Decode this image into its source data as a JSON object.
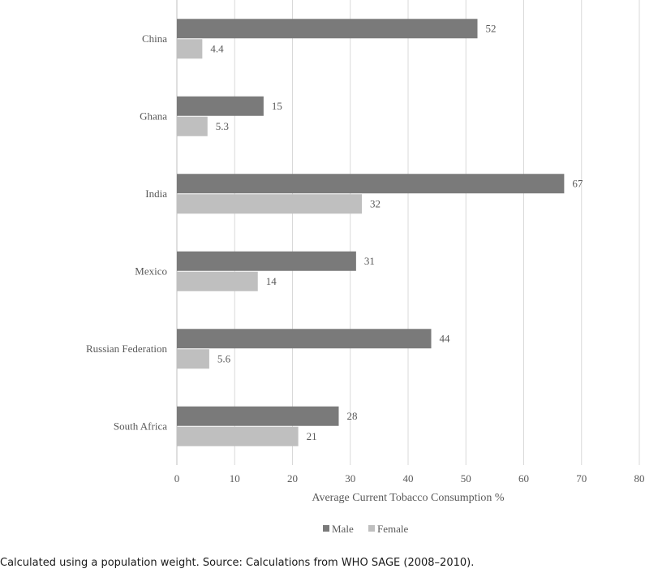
{
  "chart_data": {
    "type": "bar",
    "orientation": "horizontal",
    "categories": [
      "China",
      "Ghana",
      "India",
      "Mexico",
      "Russian Federation",
      "South Africa"
    ],
    "series": [
      {
        "name": "Male",
        "values": [
          52,
          15,
          67,
          31,
          44,
          28
        ],
        "labels": [
          "52",
          "15",
          "67",
          "31",
          "44",
          "28"
        ],
        "color": "#7a7a7a"
      },
      {
        "name": "Female",
        "values": [
          4.4,
          5.3,
          32,
          14,
          5.6,
          21
        ],
        "labels": [
          "4.4",
          "5.3",
          "32",
          "14",
          "5.6",
          "21"
        ],
        "color": "#bfbfbf"
      }
    ],
    "xlabel": "Average Current Tobacco Consumption %",
    "xlim": [
      0,
      80
    ],
    "xticks": [
      "0",
      "10",
      "20",
      "30",
      "40",
      "50",
      "60",
      "70",
      "80"
    ],
    "grid": true,
    "legend_position": "bottom"
  },
  "caption": "Calculated using a population weight. Source: Calculations from WHO SAGE (2008–2010)."
}
